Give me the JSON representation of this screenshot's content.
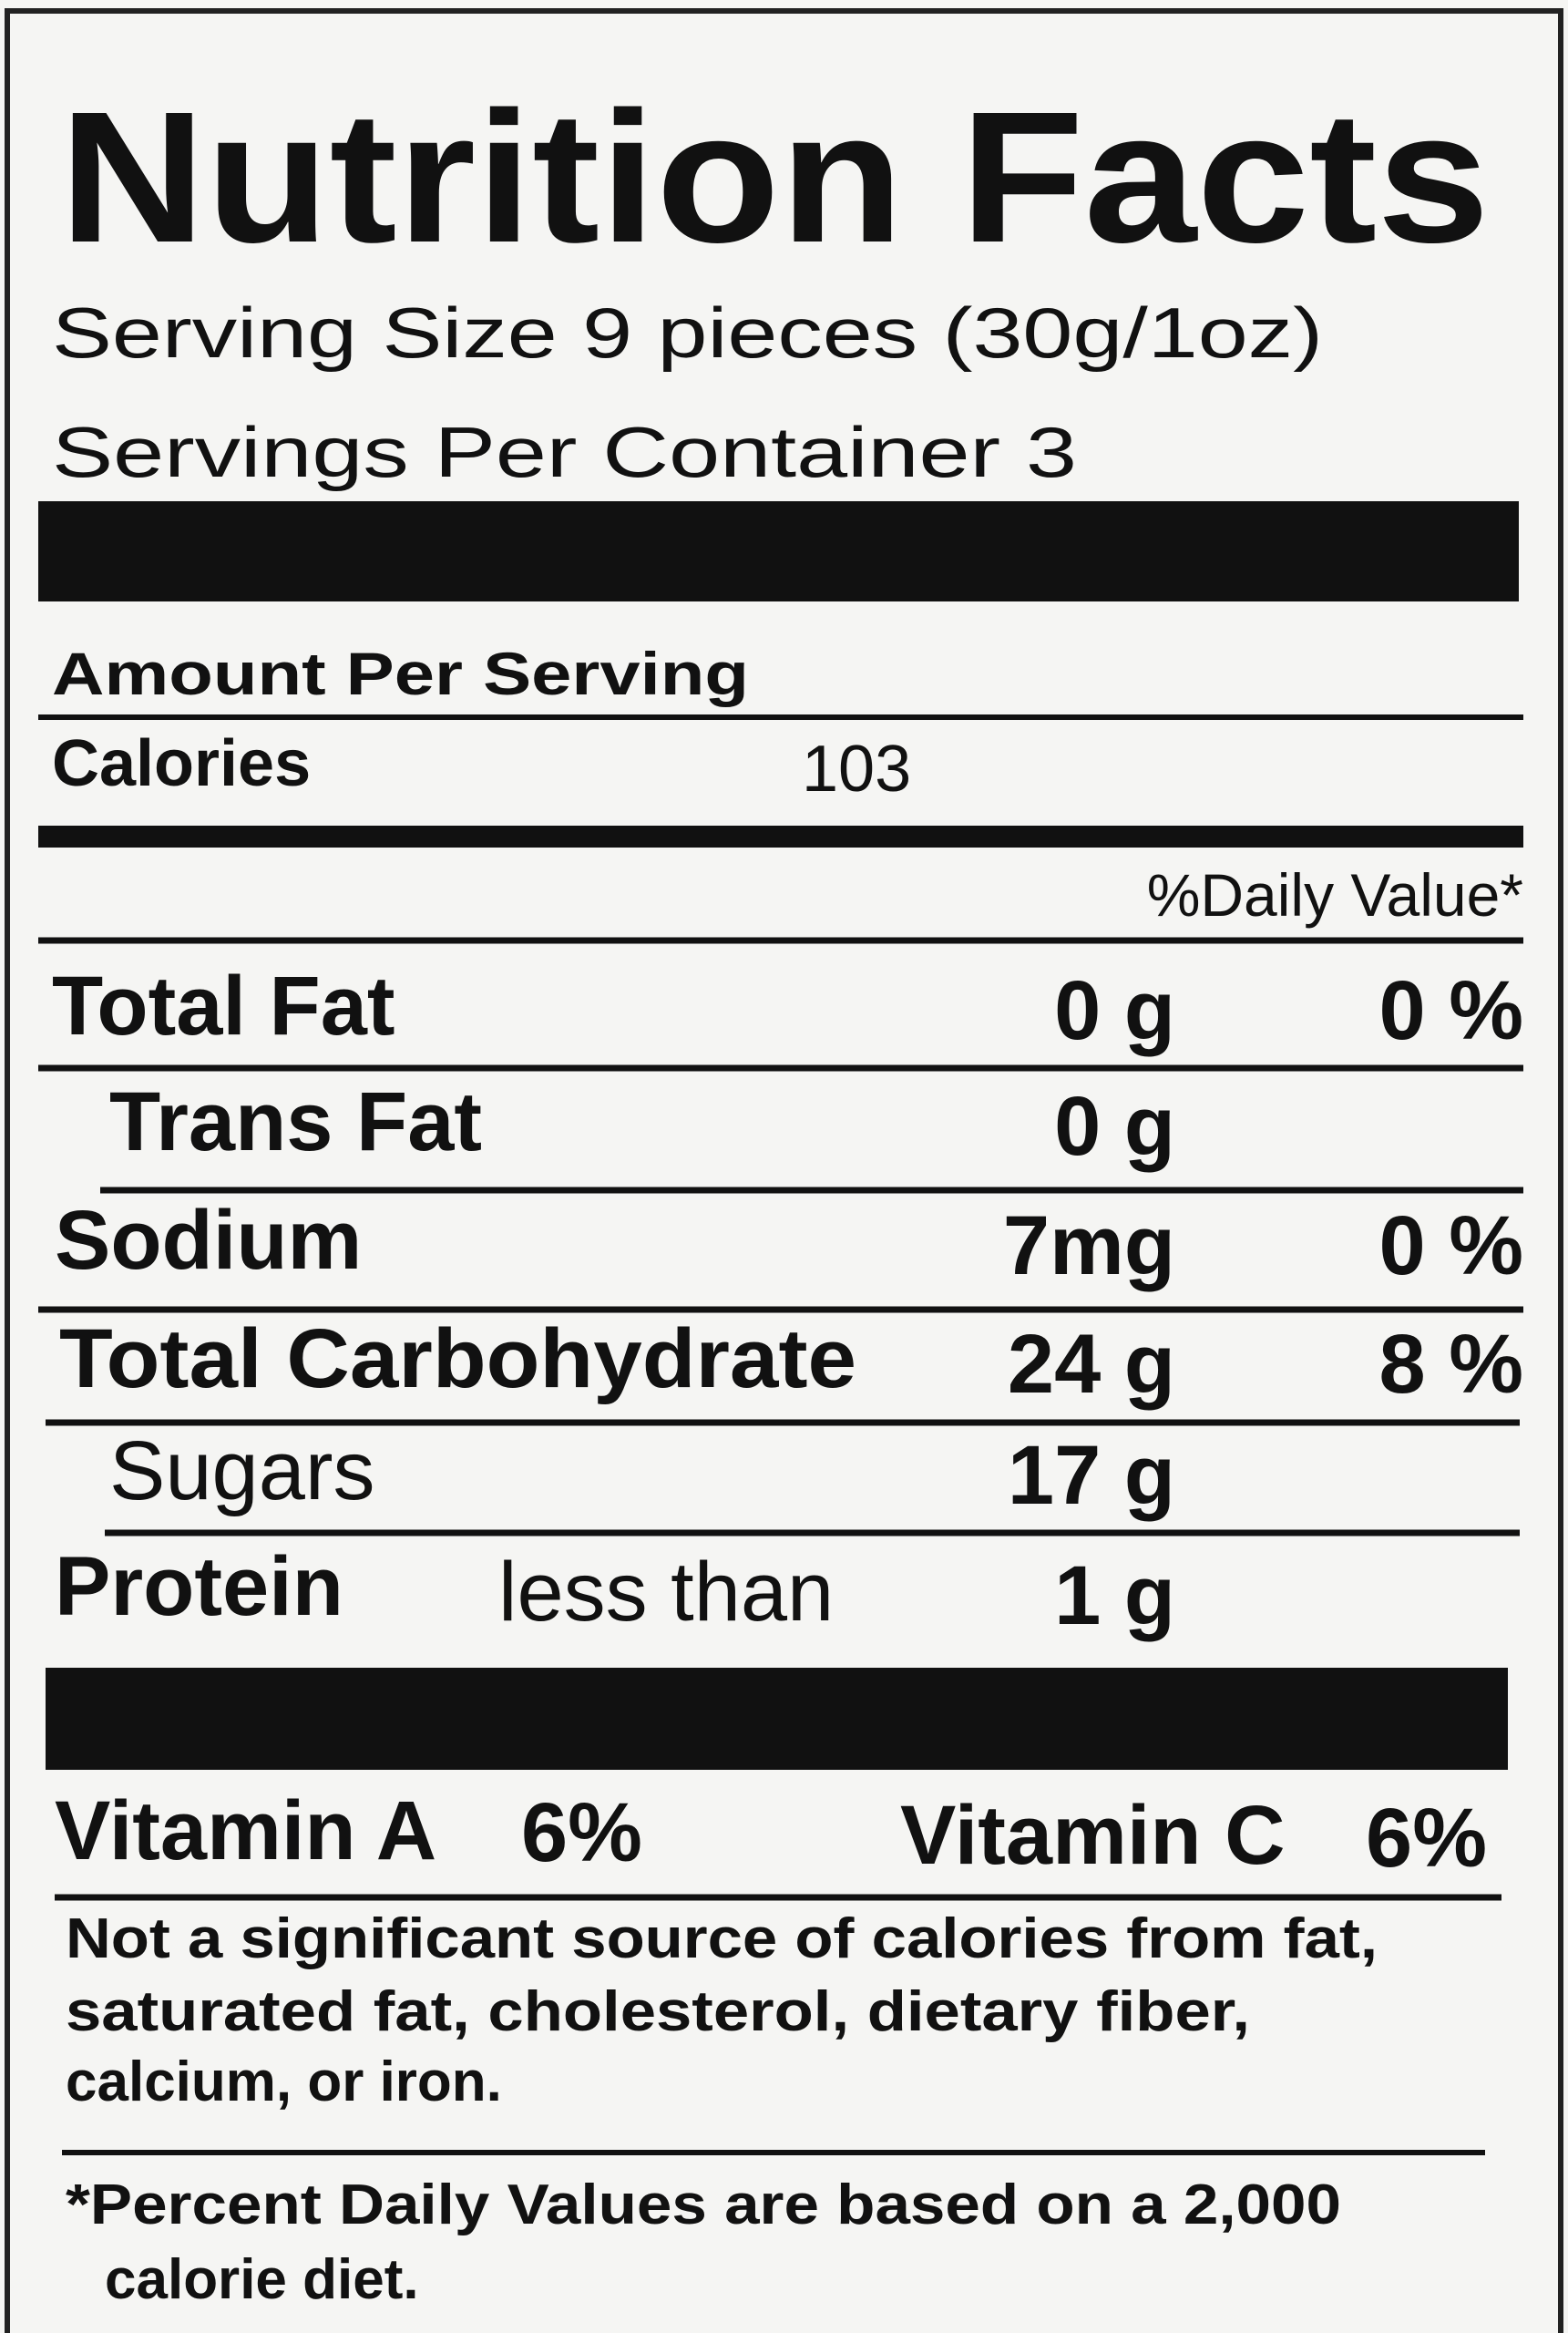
{
  "header": {
    "title": "Nutrition Facts",
    "serving_size": "Serving Size 9 pieces (30g/1oz)",
    "servings_per_container": "Servings  Per Container 3"
  },
  "amount_per_serving": "Amount Per Serving",
  "calories": {
    "label": "Calories",
    "value": "103"
  },
  "daily_value_header": "%Daily Value*",
  "nutrients": [
    {
      "name": "Total Fat",
      "amount": "0 g",
      "daily_value": "0 %"
    },
    {
      "name": "Trans Fat",
      "amount": "0 g"
    },
    {
      "name": "Sodium",
      "amount": "7mg",
      "daily_value": "0 %"
    },
    {
      "name": "Total Carbohydrate",
      "amount": "24 g",
      "daily_value": "8 %"
    },
    {
      "name": "Sugars",
      "amount": "17 g"
    },
    {
      "name": "Protein",
      "qualifier": "less than",
      "amount": "1 g"
    }
  ],
  "vitamins": [
    {
      "name": "Vitamin A",
      "value": "6%"
    },
    {
      "name": "Vitamin C",
      "value": "6%"
    }
  ],
  "note": [
    "Not a significant source of calories from fat,",
    "saturated fat, cholesterol, dietary fiber,",
    "calcium, or iron."
  ],
  "footnote": [
    "*Percent Daily Values are based on a 2,000",
    "calorie diet."
  ]
}
